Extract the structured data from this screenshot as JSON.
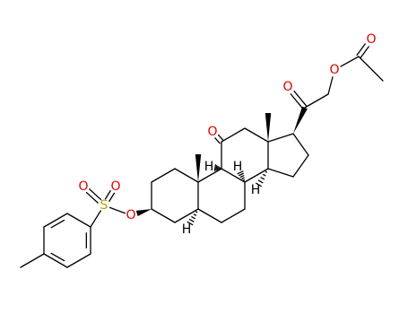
{
  "atoms": [
    {
      "label": "O"
    },
    {
      "label": "O"
    },
    {
      "label": "O"
    },
    {
      "label": "O"
    },
    {
      "label": "O"
    },
    {
      "label": "O"
    },
    {
      "label": "O"
    },
    {
      "label": "S"
    },
    {
      "label": "H"
    },
    {
      "label": "H"
    },
    {
      "label": "H"
    },
    {
      "label": "H"
    }
  ]
}
